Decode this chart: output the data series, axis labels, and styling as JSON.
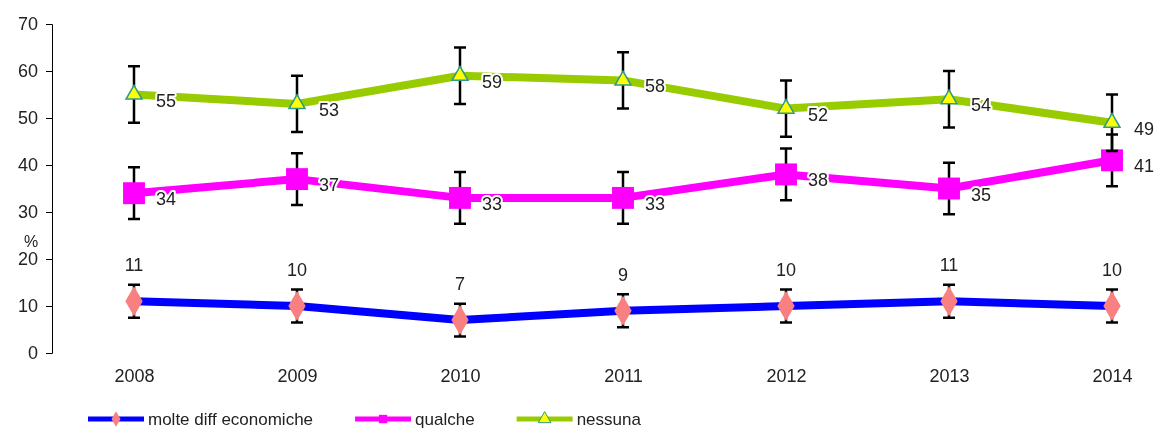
{
  "chart_data": {
    "type": "line",
    "ylabel": "%",
    "categories": [
      "2008",
      "2009",
      "2010",
      "2011",
      "2012",
      "2013",
      "2014"
    ],
    "ylim": [
      0,
      70
    ],
    "yticks": [
      0,
      10,
      20,
      30,
      40,
      50,
      60,
      70
    ],
    "grid": false,
    "legend": "bottom",
    "data_labels": true,
    "series": [
      {
        "name": "molte diff economiche",
        "color": "#0000ff",
        "marker": "diamond",
        "values": [
          11,
          10,
          7,
          9,
          10,
          11,
          10
        ],
        "errors": [
          3.5,
          3.5,
          3.5,
          3.5,
          3.5,
          3.5,
          3.5
        ]
      },
      {
        "name": "qualche",
        "color": "#ff00ff",
        "marker": "square",
        "values": [
          34,
          37,
          33,
          33,
          38,
          35,
          41
        ],
        "errors": [
          5.5,
          5.5,
          5.5,
          5.5,
          5.5,
          5.5,
          5.5
        ]
      },
      {
        "name": "nessuna",
        "color": "#99cc00",
        "marker": "triangle",
        "values": [
          55,
          53,
          59,
          58,
          52,
          54,
          49
        ],
        "errors": [
          6,
          6,
          6,
          6,
          6,
          6,
          6
        ]
      }
    ]
  }
}
